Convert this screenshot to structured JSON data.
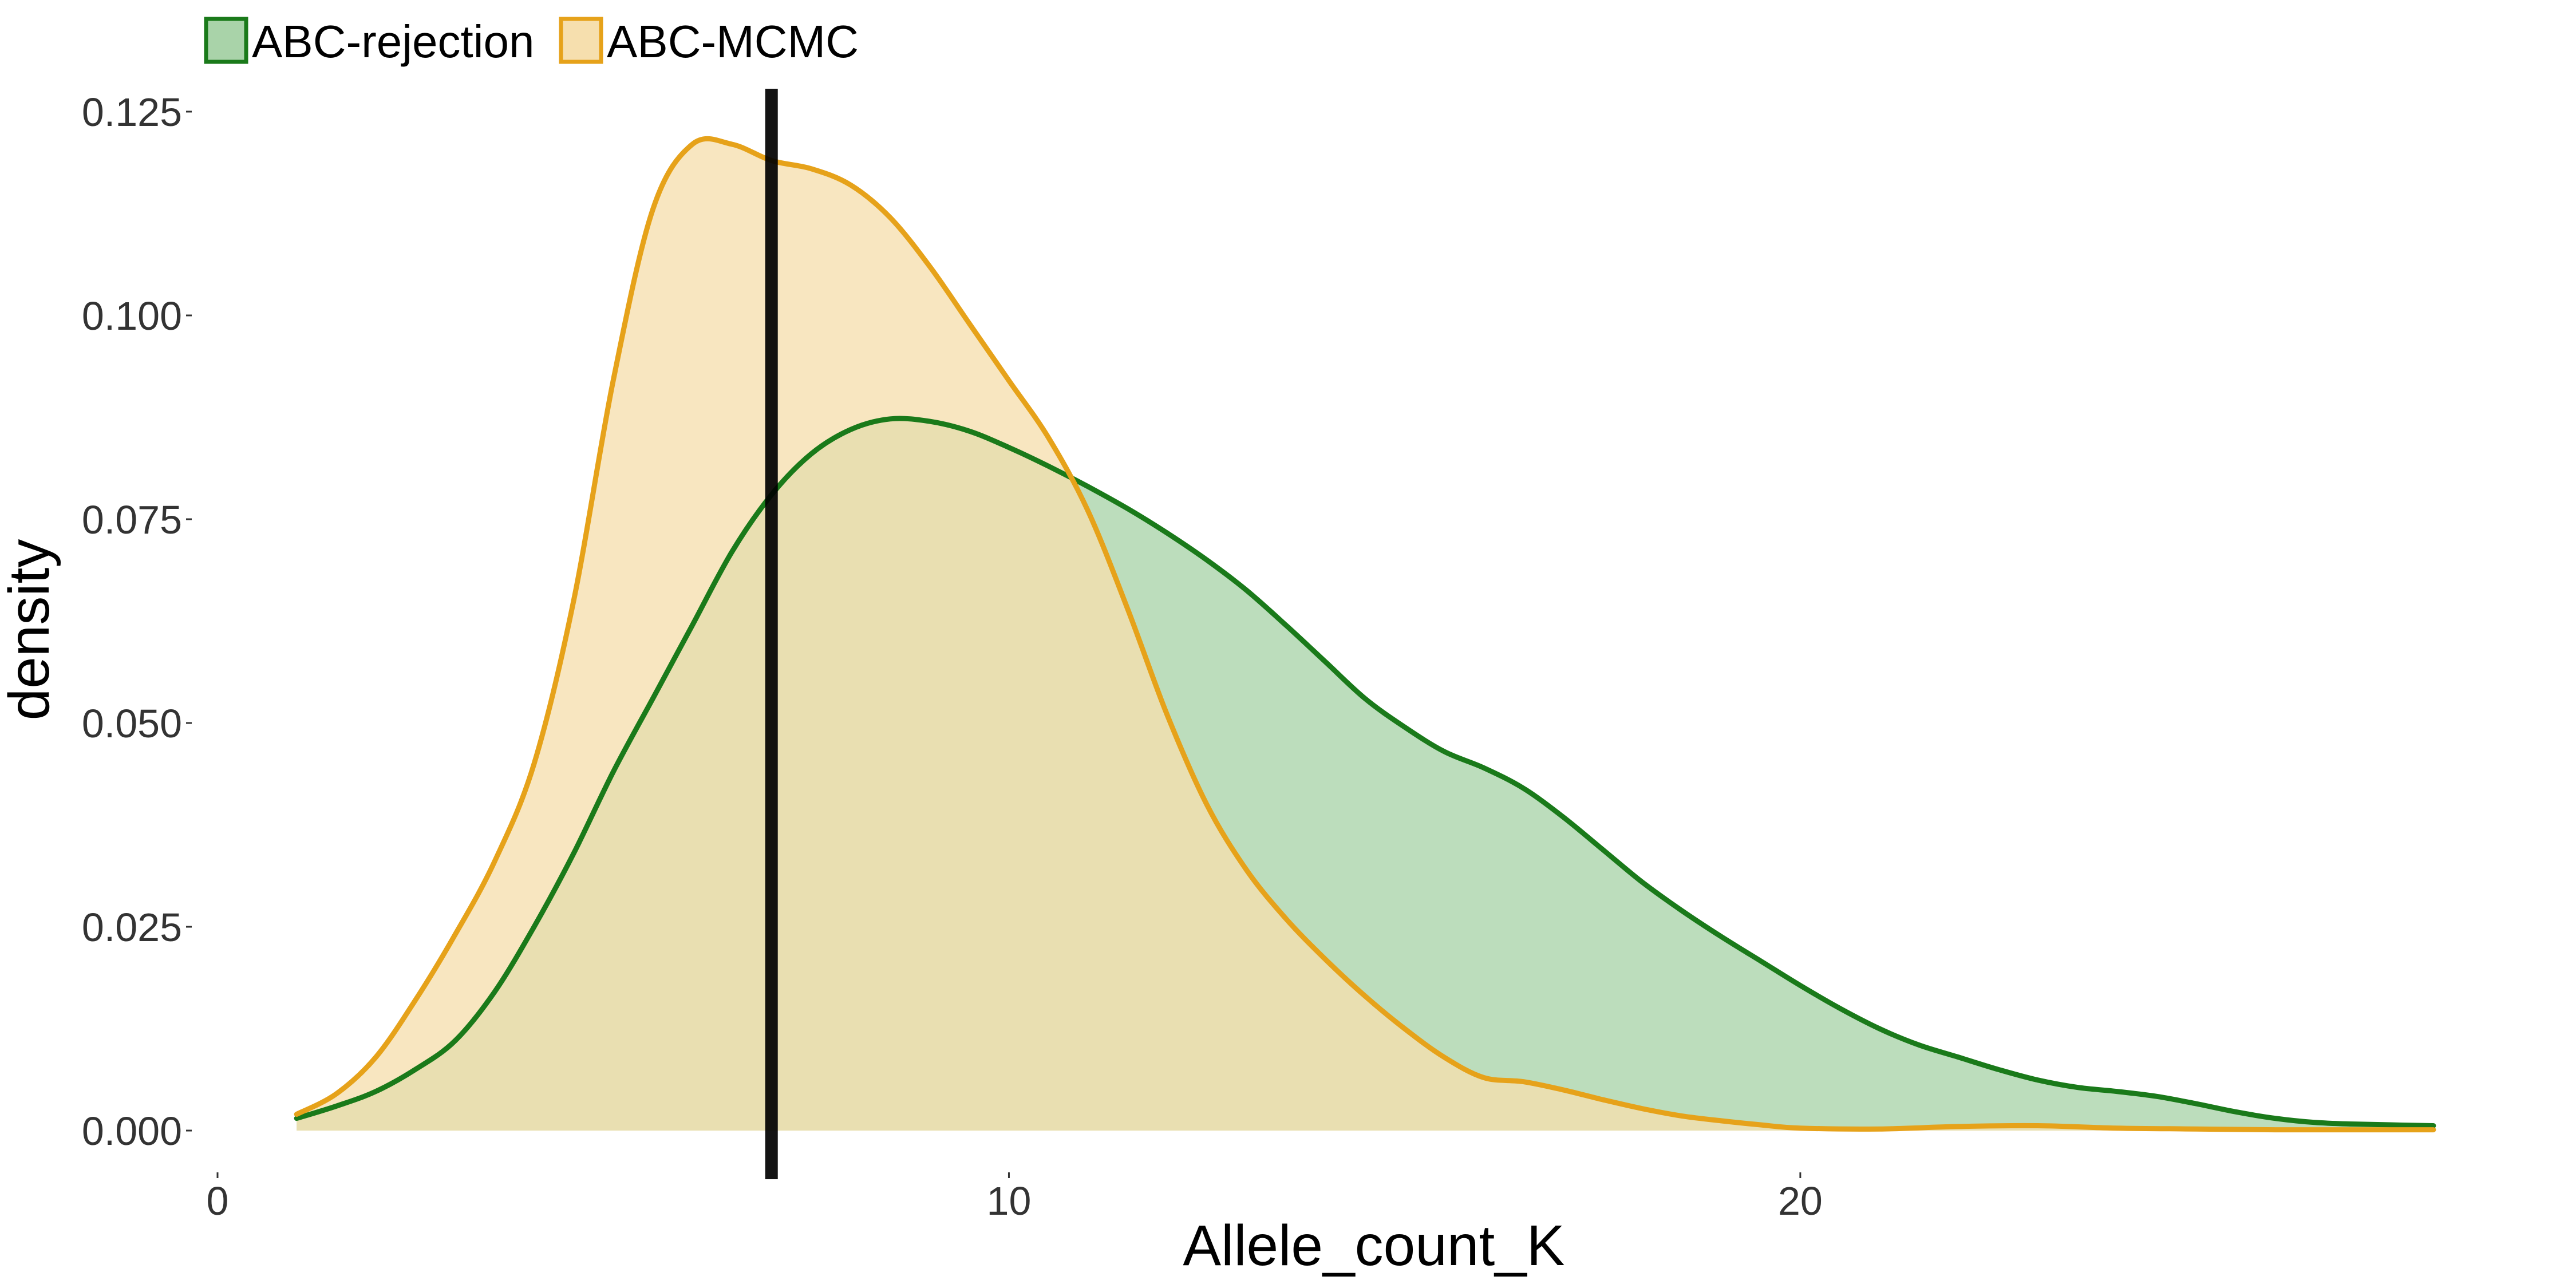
{
  "chart_data": {
    "type": "area",
    "title": "",
    "xlabel": "Allele_count_K",
    "ylabel": "density",
    "xlim": [
      0,
      28.5
    ],
    "ylim": [
      0,
      0.125
    ],
    "x_ticks": [
      0,
      10,
      20
    ],
    "x_tick_labels": [
      "0",
      "10",
      "20"
    ],
    "y_ticks": [
      0,
      0.025,
      0.05,
      0.075,
      0.1,
      0.125
    ],
    "y_tick_labels": [
      "0.000",
      "0.025",
      "0.050",
      "0.075",
      "0.100",
      "0.125"
    ],
    "grid": false,
    "legend_position": "top-left",
    "reference_line": {
      "x": 7,
      "color": "#000000"
    },
    "series": [
      {
        "name": "ABC-rejection",
        "line_color": "#1a7a1a",
        "fill_color": "#a9d3a9",
        "points": [
          [
            1.0,
            0.0015
          ],
          [
            1.5,
            0.003
          ],
          [
            2,
            0.0048
          ],
          [
            2.5,
            0.0075
          ],
          [
            3,
            0.011
          ],
          [
            3.5,
            0.017
          ],
          [
            4,
            0.025
          ],
          [
            4.5,
            0.034
          ],
          [
            5,
            0.044
          ],
          [
            5.5,
            0.053
          ],
          [
            6,
            0.062
          ],
          [
            6.5,
            0.071
          ],
          [
            7,
            0.078
          ],
          [
            7.5,
            0.083
          ],
          [
            8,
            0.086
          ],
          [
            8.5,
            0.0873
          ],
          [
            9,
            0.087
          ],
          [
            9.5,
            0.0858
          ],
          [
            10,
            0.0838
          ],
          [
            10.5,
            0.0815
          ],
          [
            11,
            0.079
          ],
          [
            11.5,
            0.0763
          ],
          [
            12,
            0.0733
          ],
          [
            12.5,
            0.07
          ],
          [
            13,
            0.0663
          ],
          [
            13.5,
            0.062
          ],
          [
            14,
            0.0575
          ],
          [
            14.5,
            0.053
          ],
          [
            15,
            0.0495
          ],
          [
            15.5,
            0.0465
          ],
          [
            16,
            0.0445
          ],
          [
            16.5,
            0.042
          ],
          [
            17,
            0.0385
          ],
          [
            17.5,
            0.0345
          ],
          [
            18,
            0.0305
          ],
          [
            18.5,
            0.027
          ],
          [
            19,
            0.0238
          ],
          [
            19.5,
            0.0208
          ],
          [
            20,
            0.0178
          ],
          [
            20.5,
            0.015
          ],
          [
            21,
            0.0125
          ],
          [
            21.5,
            0.0105
          ],
          [
            22,
            0.009
          ],
          [
            22.5,
            0.0075
          ],
          [
            23,
            0.0062
          ],
          [
            23.5,
            0.0053
          ],
          [
            24,
            0.0048
          ],
          [
            24.5,
            0.0042
          ],
          [
            25,
            0.0033
          ],
          [
            25.5,
            0.0023
          ],
          [
            26,
            0.0015
          ],
          [
            26.5,
            0.001
          ],
          [
            27,
            0.0008
          ],
          [
            28,
            0.0006
          ]
        ]
      },
      {
        "name": "ABC-MCMC",
        "line_color": "#e6a21a",
        "fill_color": "#f6dfae",
        "points": [
          [
            1.0,
            0.002
          ],
          [
            1.5,
            0.0045
          ],
          [
            2,
            0.009
          ],
          [
            2.5,
            0.016
          ],
          [
            3,
            0.024
          ],
          [
            3.5,
            0.033
          ],
          [
            4,
            0.045
          ],
          [
            4.5,
            0.065
          ],
          [
            5,
            0.092
          ],
          [
            5.5,
            0.113
          ],
          [
            6,
            0.121
          ],
          [
            6.5,
            0.121
          ],
          [
            7,
            0.119
          ],
          [
            7.5,
            0.118
          ],
          [
            8,
            0.116
          ],
          [
            8.5,
            0.112
          ],
          [
            9,
            0.106
          ],
          [
            9.5,
            0.099
          ],
          [
            10,
            0.092
          ],
          [
            10.5,
            0.085
          ],
          [
            11,
            0.076
          ],
          [
            11.5,
            0.064
          ],
          [
            12,
            0.051
          ],
          [
            12.5,
            0.04
          ],
          [
            13,
            0.032
          ],
          [
            13.5,
            0.026
          ],
          [
            14,
            0.021
          ],
          [
            14.5,
            0.0165
          ],
          [
            15,
            0.0125
          ],
          [
            15.5,
            0.009
          ],
          [
            16,
            0.0065
          ],
          [
            16.5,
            0.006
          ],
          [
            17,
            0.005
          ],
          [
            17.5,
            0.0038
          ],
          [
            18,
            0.0027
          ],
          [
            18.5,
            0.0018
          ],
          [
            19,
            0.0012
          ],
          [
            19.5,
            0.0007
          ],
          [
            20,
            0.0003
          ],
          [
            21,
            0.0002
          ],
          [
            22,
            0.0005
          ],
          [
            23,
            0.0006
          ],
          [
            24,
            0.0003
          ],
          [
            25,
            0.0002
          ],
          [
            26,
            0.0001
          ],
          [
            27,
            0.0001
          ],
          [
            28,
            0.0001
          ]
        ]
      }
    ]
  }
}
